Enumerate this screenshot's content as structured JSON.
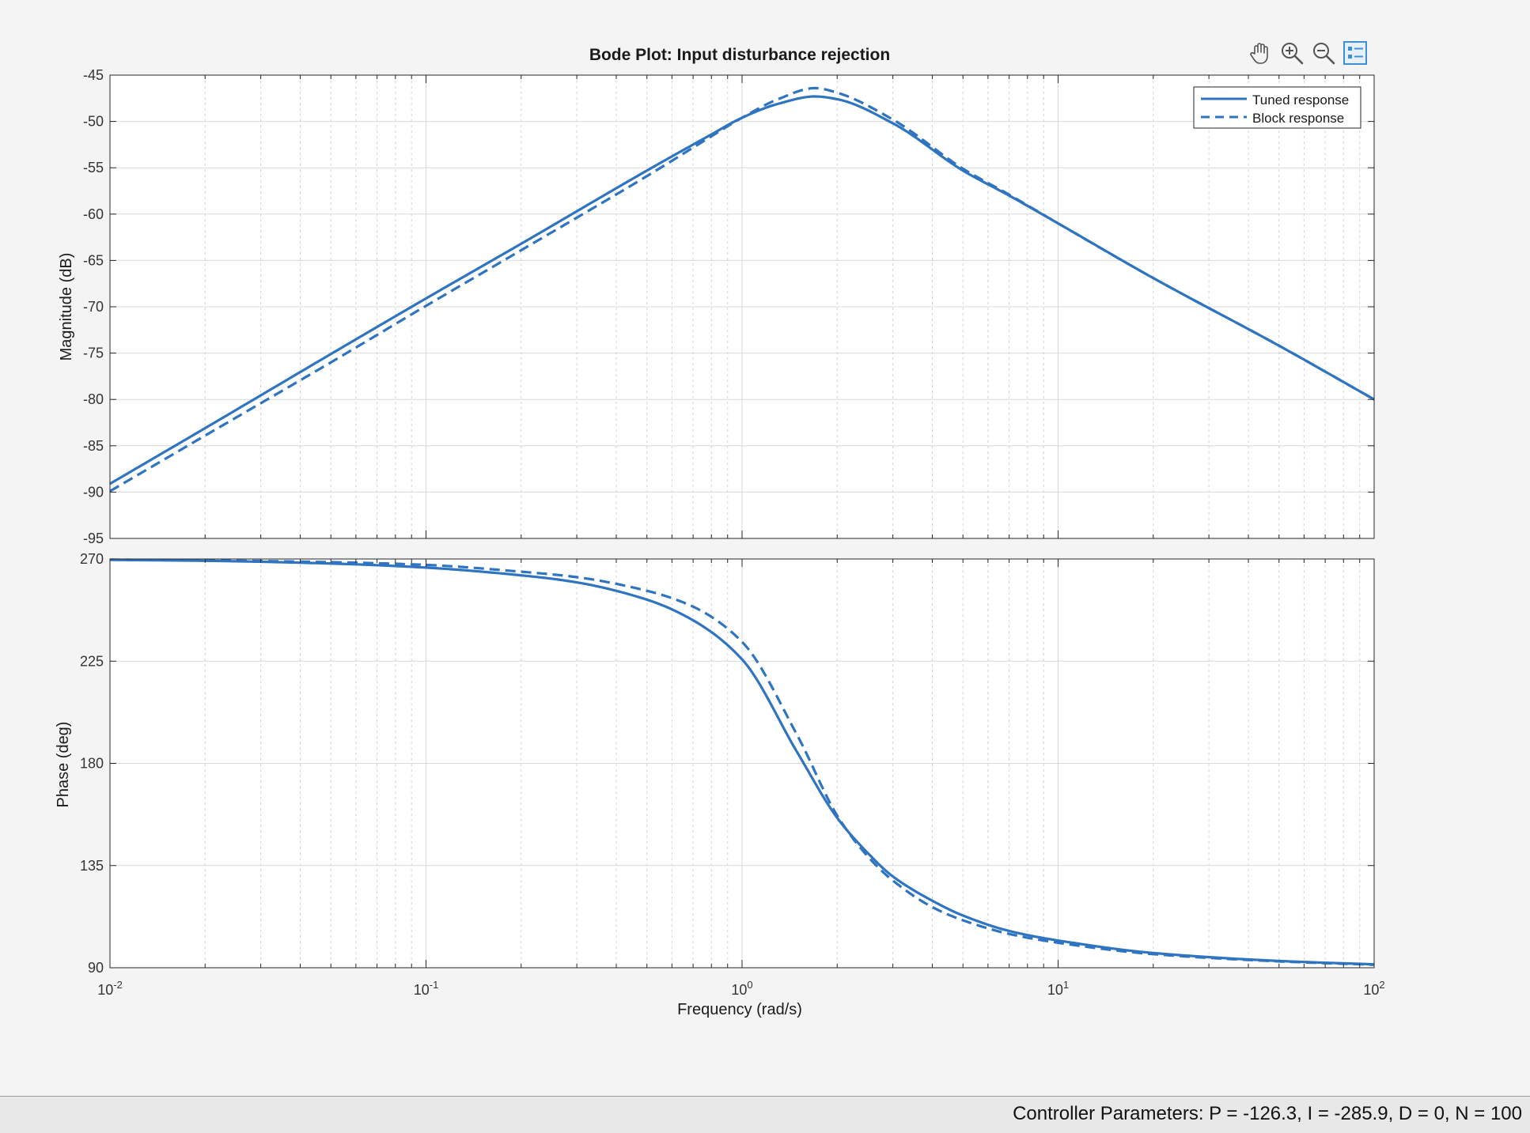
{
  "figure": {
    "title": "Bode Plot: Input disturbance rejection",
    "toolbar": [
      {
        "name": "pan-hand-icon"
      },
      {
        "name": "zoom-in-icon"
      },
      {
        "name": "zoom-out-icon"
      },
      {
        "name": "legend-toggle-icon"
      }
    ]
  },
  "statusbar": {
    "text": "Controller Parameters: P = -126.3, I = -285.9, D =  0, N = 100"
  },
  "colors": {
    "series": "#2e74c0",
    "grid": "#d9d9d9",
    "axes_bg": "#ffffff"
  },
  "chart_data": [
    {
      "type": "line",
      "panel": "magnitude",
      "title": "Bode Plot: Input disturbance rejection",
      "xlabel": "",
      "ylabel": "Magnitude (dB)",
      "xscale": "log",
      "xlim": [
        0.01,
        100
      ],
      "ylim": [
        -95,
        -45
      ],
      "yticks": [
        -45,
        -50,
        -55,
        -60,
        -65,
        -70,
        -75,
        -80,
        -85,
        -90,
        -95
      ],
      "grid": true,
      "legend": {
        "placement": "top-right",
        "entries": [
          "Tuned response",
          "Block response"
        ]
      },
      "series": [
        {
          "name": "Tuned response",
          "style": "solid",
          "x": [
            0.01,
            0.02,
            0.05,
            0.1,
            0.2,
            0.5,
            0.8,
            1,
            1.3,
            1.7,
            2,
            3,
            5,
            7,
            10,
            20,
            50,
            100
          ],
          "y": [
            -89.1,
            -83.1,
            -75.1,
            -69.1,
            -63.2,
            -55.3,
            -51.4,
            -49.6,
            -48.1,
            -47.3,
            -47.6,
            -50.2,
            -55.3,
            -58,
            -61,
            -66.9,
            -74.2,
            -80
          ]
        },
        {
          "name": "Block response",
          "style": "dashed",
          "x": [
            0.01,
            0.02,
            0.05,
            0.1,
            0.2,
            0.5,
            0.8,
            1,
            1.3,
            1.7,
            2,
            3,
            5,
            7,
            10,
            20,
            50,
            100
          ],
          "y": [
            -89.9,
            -83.9,
            -76.0,
            -69.9,
            -63.9,
            -55.9,
            -51.6,
            -49.6,
            -47.6,
            -46.4,
            -46.9,
            -49.8,
            -55.1,
            -57.9,
            -61,
            -66.9,
            -74.2,
            -80
          ]
        }
      ]
    },
    {
      "type": "line",
      "panel": "phase",
      "xlabel": "Frequency  (rad/s)",
      "ylabel": "Phase (deg)",
      "xscale": "log",
      "xlim": [
        0.01,
        100
      ],
      "xticks": [
        "10^-2",
        "10^-1",
        "10^0",
        "10^1",
        "10^2"
      ],
      "ylim": [
        90,
        270
      ],
      "yticks": [
        270,
        225,
        180,
        135,
        90
      ],
      "grid": true,
      "series": [
        {
          "name": "Tuned response",
          "style": "solid",
          "x": [
            0.01,
            0.02,
            0.05,
            0.1,
            0.2,
            0.3,
            0.5,
            0.7,
            1,
            1.5,
            2,
            2.5,
            3,
            4,
            5,
            7,
            10,
            20,
            50,
            100
          ],
          "y": [
            269.6,
            269.2,
            268,
            266.2,
            262.8,
            259.7,
            252.1,
            243,
            225.8,
            184.5,
            156,
            140.5,
            130.2,
            119.5,
            113,
            106.2,
            102,
            96.5,
            93,
            91.5
          ]
        },
        {
          "name": "Block response",
          "style": "dashed",
          "x": [
            0.01,
            0.02,
            0.05,
            0.1,
            0.2,
            0.3,
            0.5,
            0.7,
            1,
            1.5,
            2,
            2.5,
            3,
            4,
            5,
            7,
            10,
            20,
            50,
            100
          ],
          "y": [
            269.7,
            269.4,
            268.6,
            267.4,
            264.4,
            262,
            256,
            249,
            233.5,
            192,
            157,
            139,
            128.4,
            116.7,
            110.9,
            104.9,
            101,
            96,
            92.8,
            91.3
          ]
        }
      ]
    }
  ]
}
